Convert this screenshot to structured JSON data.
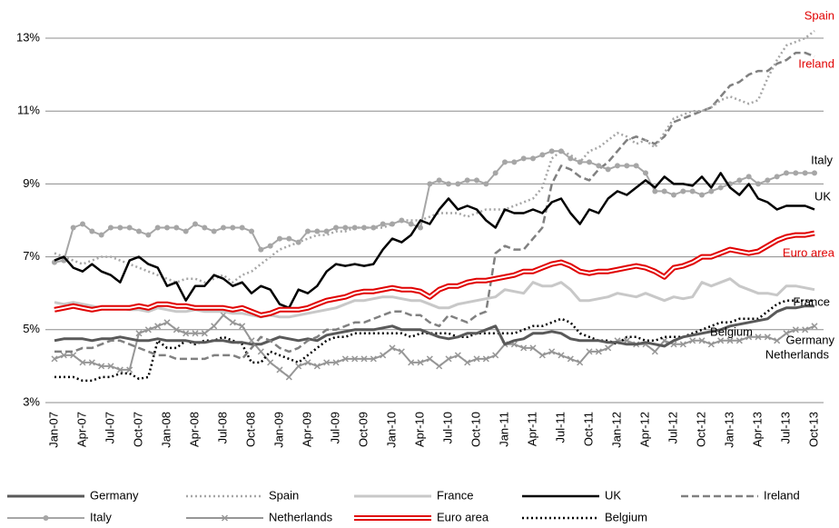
{
  "chart_data": {
    "type": "line",
    "categories": [
      "Jan-07",
      null,
      null,
      "Apr-07",
      null,
      null,
      "Jul-07",
      null,
      null,
      "Oct-07",
      null,
      null,
      "Jan-08",
      null,
      null,
      "Apr-08",
      null,
      null,
      "Jul-08",
      null,
      null,
      "Oct-08",
      null,
      null,
      "Jan-09",
      null,
      null,
      "Apr-09",
      null,
      null,
      "Jul-09",
      null,
      null,
      "Oct-09",
      null,
      null,
      "Jan-10",
      null,
      null,
      "Apr-10",
      null,
      null,
      "Jul-10",
      null,
      null,
      "Oct-10",
      null,
      null,
      "Jan-11",
      null,
      null,
      "Apr-11",
      null,
      null,
      "Jul-11",
      null,
      null,
      "Oct-11",
      null,
      null,
      "Jan-12",
      null,
      null,
      "Apr-12",
      null,
      null,
      "Jul-12",
      null,
      null,
      "Oct-12",
      null,
      null,
      "Jan-13",
      null,
      null,
      "Apr-13",
      null,
      null,
      "Jul-13",
      null,
      null,
      "Oct-13"
    ],
    "ylim": [
      3,
      13.5
    ],
    "yticks": [
      {
        "value": 3,
        "label": "3%"
      },
      {
        "value": 5,
        "label": "5%"
      },
      {
        "value": 7,
        "label": "7%"
      },
      {
        "value": 9,
        "label": "9%"
      },
      {
        "value": 11,
        "label": "11%"
      },
      {
        "value": 13,
        "label": "13%"
      }
    ],
    "grid": true,
    "legend": "bottom",
    "series": [
      {
        "name": "Germany",
        "color": "#595959",
        "dash": "solid",
        "width": 3,
        "label_color": "#000000",
        "values": [
          4.7,
          4.75,
          4.75,
          4.75,
          4.7,
          4.75,
          4.75,
          4.8,
          4.75,
          4.7,
          4.7,
          4.75,
          4.7,
          4.7,
          4.7,
          4.65,
          4.65,
          4.7,
          4.7,
          4.65,
          4.65,
          4.6,
          4.6,
          4.7,
          4.8,
          4.75,
          4.7,
          4.75,
          4.7,
          4.85,
          4.9,
          4.95,
          5.0,
          5.0,
          5.0,
          5.05,
          5.1,
          5.0,
          5.0,
          5.0,
          4.9,
          4.8,
          4.75,
          4.8,
          4.9,
          4.9,
          5.0,
          5.1,
          4.6,
          4.7,
          4.75,
          4.9,
          4.9,
          4.95,
          4.9,
          4.75,
          4.7,
          4.7,
          4.7,
          4.65,
          4.65,
          4.6,
          4.6,
          4.65,
          4.6,
          4.55,
          4.7,
          4.8,
          4.85,
          4.9,
          4.95,
          5.0,
          5.1,
          5.15,
          5.2,
          5.25,
          5.3,
          5.5,
          5.6,
          5.6,
          5.65,
          5.65
        ]
      },
      {
        "name": "Spain",
        "color": "#a6a6a6",
        "dash": "dotted",
        "width": 2.5,
        "label_color": "#e00000",
        "values": [
          7.1,
          7.0,
          6.9,
          6.8,
          6.9,
          7.0,
          7.0,
          6.9,
          6.8,
          6.7,
          6.6,
          6.5,
          6.4,
          6.3,
          6.4,
          6.4,
          6.3,
          6.4,
          6.5,
          6.3,
          6.5,
          6.6,
          6.8,
          7.0,
          7.2,
          7.3,
          7.4,
          7.5,
          7.6,
          7.6,
          7.7,
          7.7,
          7.8,
          7.8,
          7.8,
          7.8,
          7.9,
          8.0,
          8.0,
          8.0,
          8.1,
          8.2,
          8.2,
          8.2,
          8.1,
          8.2,
          8.3,
          8.3,
          8.3,
          8.4,
          8.5,
          8.6,
          8.9,
          9.7,
          9.9,
          9.8,
          9.6,
          9.9,
          10.0,
          10.2,
          10.4,
          10.3,
          10.1,
          10.2,
          10.0,
          10.4,
          10.8,
          10.9,
          11.0,
          11.0,
          11.1,
          11.3,
          11.4,
          11.3,
          11.2,
          11.3,
          11.9,
          12.4,
          12.8,
          12.9,
          13.0,
          13.2
        ]
      },
      {
        "name": "France",
        "color": "#c8c8c8",
        "dash": "solid",
        "width": 3,
        "label_color": "#000000",
        "values": [
          5.75,
          5.7,
          5.75,
          5.7,
          5.65,
          5.6,
          5.6,
          5.6,
          5.55,
          5.55,
          5.5,
          5.6,
          5.55,
          5.5,
          5.5,
          5.55,
          5.5,
          5.5,
          5.5,
          5.45,
          5.45,
          5.4,
          5.35,
          5.4,
          5.35,
          5.35,
          5.4,
          5.45,
          5.5,
          5.55,
          5.6,
          5.7,
          5.8,
          5.8,
          5.85,
          5.9,
          5.9,
          5.85,
          5.8,
          5.8,
          5.7,
          5.6,
          5.6,
          5.7,
          5.75,
          5.8,
          5.85,
          5.9,
          6.1,
          6.05,
          6.0,
          6.3,
          6.2,
          6.2,
          6.3,
          6.1,
          5.8,
          5.8,
          5.85,
          5.9,
          6.0,
          5.95,
          5.9,
          6.0,
          5.9,
          5.8,
          5.9,
          5.85,
          5.9,
          6.3,
          6.2,
          6.3,
          6.4,
          6.2,
          6.1,
          6.0,
          6.0,
          5.95,
          6.2,
          6.2,
          6.15,
          6.1
        ]
      },
      {
        "name": "UK",
        "color": "#000000",
        "dash": "solid",
        "width": 2.5,
        "label_color": "#000000",
        "values": [
          6.9,
          7.0,
          6.7,
          6.6,
          6.8,
          6.6,
          6.5,
          6.3,
          6.9,
          7.0,
          6.8,
          6.7,
          6.2,
          6.3,
          5.8,
          6.2,
          6.2,
          6.5,
          6.4,
          6.2,
          6.3,
          6.0,
          6.2,
          6.1,
          5.7,
          5.6,
          6.1,
          6.0,
          6.2,
          6.6,
          6.8,
          6.75,
          6.8,
          6.75,
          6.8,
          7.2,
          7.5,
          7.4,
          7.6,
          8.0,
          7.9,
          8.3,
          8.6,
          8.3,
          8.4,
          8.3,
          8.0,
          7.8,
          8.3,
          8.2,
          8.2,
          8.3,
          8.2,
          8.5,
          8.6,
          8.2,
          7.9,
          8.3,
          8.2,
          8.6,
          8.8,
          8.7,
          8.9,
          9.1,
          8.9,
          9.2,
          9.0,
          9.0,
          8.95,
          9.2,
          8.9,
          9.3,
          8.9,
          8.7,
          9.0,
          8.6,
          8.5,
          8.3,
          8.4,
          8.4,
          8.4,
          8.3
        ]
      },
      {
        "name": "Ireland",
        "color": "#808080",
        "dash": "dashed",
        "width": 2.5,
        "label_color": "#e00000",
        "values": [
          4.4,
          4.4,
          4.4,
          4.5,
          4.5,
          4.6,
          4.7,
          4.7,
          4.6,
          4.5,
          4.4,
          4.3,
          4.3,
          4.2,
          4.2,
          4.2,
          4.2,
          4.3,
          4.3,
          4.3,
          4.2,
          4.5,
          4.8,
          4.7,
          4.5,
          4.4,
          4.5,
          4.7,
          4.8,
          5.0,
          5.0,
          5.1,
          5.2,
          5.2,
          5.3,
          5.4,
          5.5,
          5.5,
          5.4,
          5.4,
          5.2,
          5.1,
          5.4,
          5.3,
          5.2,
          5.4,
          5.5,
          7.1,
          7.3,
          7.2,
          7.2,
          7.5,
          7.8,
          9.0,
          9.5,
          9.4,
          9.2,
          9.1,
          9.4,
          9.6,
          9.9,
          10.2,
          10.3,
          10.2,
          10.1,
          10.3,
          10.7,
          10.8,
          10.9,
          11.0,
          11.1,
          11.4,
          11.7,
          11.8,
          12.0,
          12.1,
          12.1,
          12.3,
          12.4,
          12.6,
          12.6,
          12.5
        ]
      },
      {
        "name": "Italy",
        "color": "#a6a6a6",
        "dash": "solid",
        "width": 2,
        "marker": "circle",
        "label_color": "#000000",
        "values": [
          6.85,
          6.9,
          7.8,
          7.9,
          7.7,
          7.6,
          7.8,
          7.8,
          7.8,
          7.7,
          7.6,
          7.8,
          7.8,
          7.8,
          7.7,
          7.9,
          7.8,
          7.7,
          7.8,
          7.8,
          7.8,
          7.7,
          7.2,
          7.3,
          7.5,
          7.5,
          7.4,
          7.7,
          7.7,
          7.7,
          7.8,
          7.8,
          7.8,
          7.8,
          7.8,
          7.9,
          7.9,
          8.0,
          7.9,
          7.8,
          9.0,
          9.1,
          9.0,
          9.0,
          9.1,
          9.1,
          9.0,
          9.3,
          9.6,
          9.6,
          9.7,
          9.7,
          9.8,
          9.9,
          9.9,
          9.7,
          9.6,
          9.6,
          9.5,
          9.4,
          9.5,
          9.5,
          9.5,
          9.3,
          8.8,
          8.8,
          8.7,
          8.8,
          8.8,
          8.7,
          8.8,
          8.9,
          9.0,
          9.1,
          9.2,
          9.0,
          9.1,
          9.2,
          9.3,
          9.3,
          9.3,
          9.3
        ]
      },
      {
        "name": "Netherlands",
        "color": "#969696",
        "dash": "solid",
        "width": 2,
        "marker": "x",
        "label_color": "#000000",
        "values": [
          4.2,
          4.3,
          4.3,
          4.1,
          4.1,
          4.0,
          4.0,
          3.9,
          3.9,
          4.9,
          5.0,
          5.1,
          5.2,
          5.0,
          4.9,
          4.9,
          4.9,
          5.1,
          5.4,
          5.2,
          5.1,
          4.7,
          4.4,
          4.1,
          3.9,
          3.7,
          4.0,
          4.1,
          4.0,
          4.1,
          4.1,
          4.2,
          4.2,
          4.2,
          4.2,
          4.3,
          4.5,
          4.4,
          4.1,
          4.1,
          4.2,
          4.0,
          4.2,
          4.3,
          4.1,
          4.2,
          4.2,
          4.3,
          4.6,
          4.6,
          4.5,
          4.5,
          4.3,
          4.4,
          4.3,
          4.2,
          4.1,
          4.4,
          4.4,
          4.5,
          4.7,
          4.7,
          4.6,
          4.6,
          4.4,
          4.7,
          4.6,
          4.6,
          4.7,
          4.7,
          4.6,
          4.7,
          4.7,
          4.7,
          4.8,
          4.8,
          4.8,
          4.7,
          4.9,
          5.0,
          5.0,
          5.1
        ]
      },
      {
        "name": "Euro area",
        "color": "#e00000",
        "dash": "double",
        "width": 6,
        "label_color": "#e00000",
        "values": [
          5.55,
          5.6,
          5.65,
          5.6,
          5.55,
          5.6,
          5.6,
          5.6,
          5.6,
          5.65,
          5.6,
          5.7,
          5.7,
          5.65,
          5.65,
          5.6,
          5.6,
          5.6,
          5.6,
          5.55,
          5.6,
          5.5,
          5.4,
          5.45,
          5.55,
          5.55,
          5.55,
          5.6,
          5.7,
          5.8,
          5.85,
          5.9,
          6.0,
          6.05,
          6.05,
          6.1,
          6.15,
          6.1,
          6.1,
          6.05,
          5.9,
          6.1,
          6.2,
          6.2,
          6.3,
          6.35,
          6.35,
          6.4,
          6.45,
          6.5,
          6.6,
          6.6,
          6.7,
          6.8,
          6.85,
          6.75,
          6.6,
          6.55,
          6.6,
          6.6,
          6.65,
          6.7,
          6.75,
          6.7,
          6.6,
          6.45,
          6.7,
          6.75,
          6.85,
          7.0,
          7.0,
          7.1,
          7.2,
          7.15,
          7.1,
          7.15,
          7.3,
          7.45,
          7.55,
          7.6,
          7.6,
          7.65
        ]
      },
      {
        "name": "Belgium",
        "color": "#000000",
        "dash": "dotted",
        "width": 2.5,
        "label_color": "#000000",
        "values": [
          3.7,
          3.7,
          3.7,
          3.6,
          3.6,
          3.7,
          3.7,
          3.8,
          3.8,
          3.65,
          3.7,
          4.7,
          4.5,
          4.5,
          4.7,
          4.6,
          4.7,
          4.7,
          4.8,
          4.7,
          4.6,
          4.1,
          4.1,
          4.4,
          4.3,
          4.2,
          4.1,
          4.3,
          4.5,
          4.7,
          4.8,
          4.8,
          4.9,
          4.9,
          4.9,
          4.9,
          4.9,
          4.9,
          4.8,
          4.9,
          4.9,
          4.9,
          4.9,
          4.8,
          4.8,
          4.9,
          4.9,
          4.9,
          4.9,
          4.9,
          5.0,
          5.1,
          5.1,
          5.2,
          5.3,
          5.2,
          4.9,
          4.8,
          4.7,
          4.7,
          4.6,
          4.8,
          4.8,
          4.7,
          4.7,
          4.8,
          4.8,
          4.8,
          4.9,
          5.0,
          5.1,
          5.2,
          5.2,
          5.3,
          5.3,
          5.3,
          5.5,
          5.7,
          5.8,
          5.8,
          5.8,
          5.8
        ]
      }
    ]
  }
}
